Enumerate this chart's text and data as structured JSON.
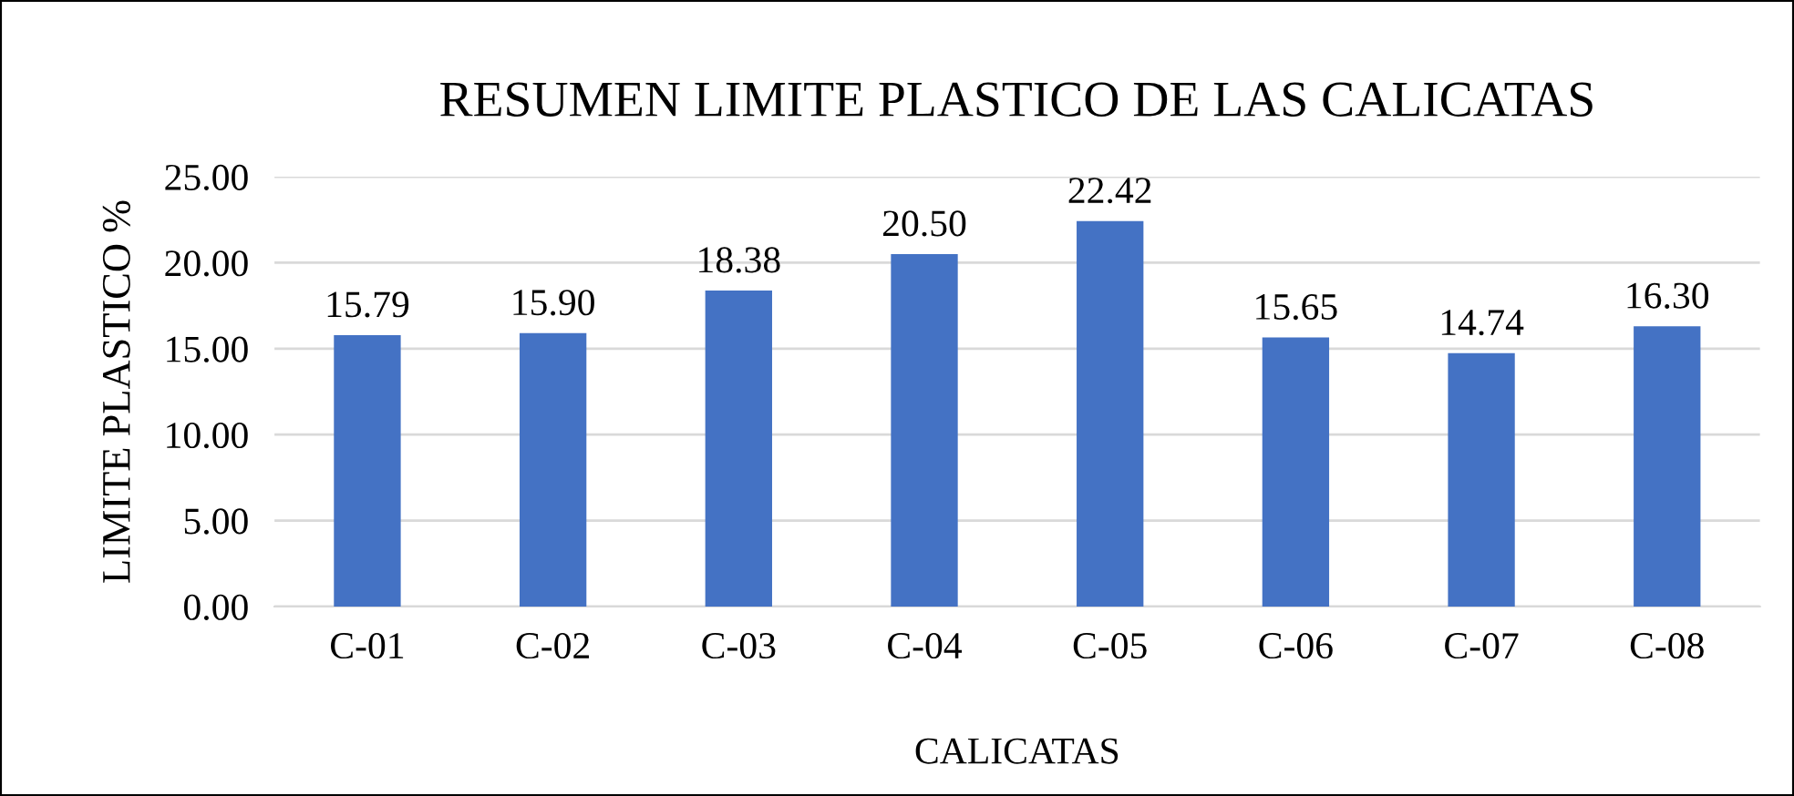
{
  "chart_data": {
    "type": "bar",
    "title": "RESUMEN LIMITE PLASTICO DE LAS CALICATAS",
    "xlabel": "CALICATAS",
    "ylabel": "LIMITE PLASTICO %",
    "categories": [
      "C-01",
      "C-02",
      "C-03",
      "C-04",
      "C-05",
      "C-06",
      "C-07",
      "C-08"
    ],
    "values": [
      15.79,
      15.9,
      18.38,
      20.5,
      22.42,
      15.65,
      14.74,
      16.3
    ],
    "value_labels": [
      "15.79",
      "15.90",
      "18.38",
      "20.50",
      "22.42",
      "15.65",
      "14.74",
      "16.30"
    ],
    "color": "#4472c4",
    "ylim": [
      0,
      25
    ],
    "yticks": [
      {
        "value": 0,
        "label": "0.00"
      },
      {
        "value": 5,
        "label": "5.00"
      },
      {
        "value": 10,
        "label": "10.00"
      },
      {
        "value": 15,
        "label": "15.00"
      },
      {
        "value": 20,
        "label": "20.00"
      },
      {
        "value": 25,
        "label": "25.00"
      }
    ],
    "grid": "y"
  }
}
